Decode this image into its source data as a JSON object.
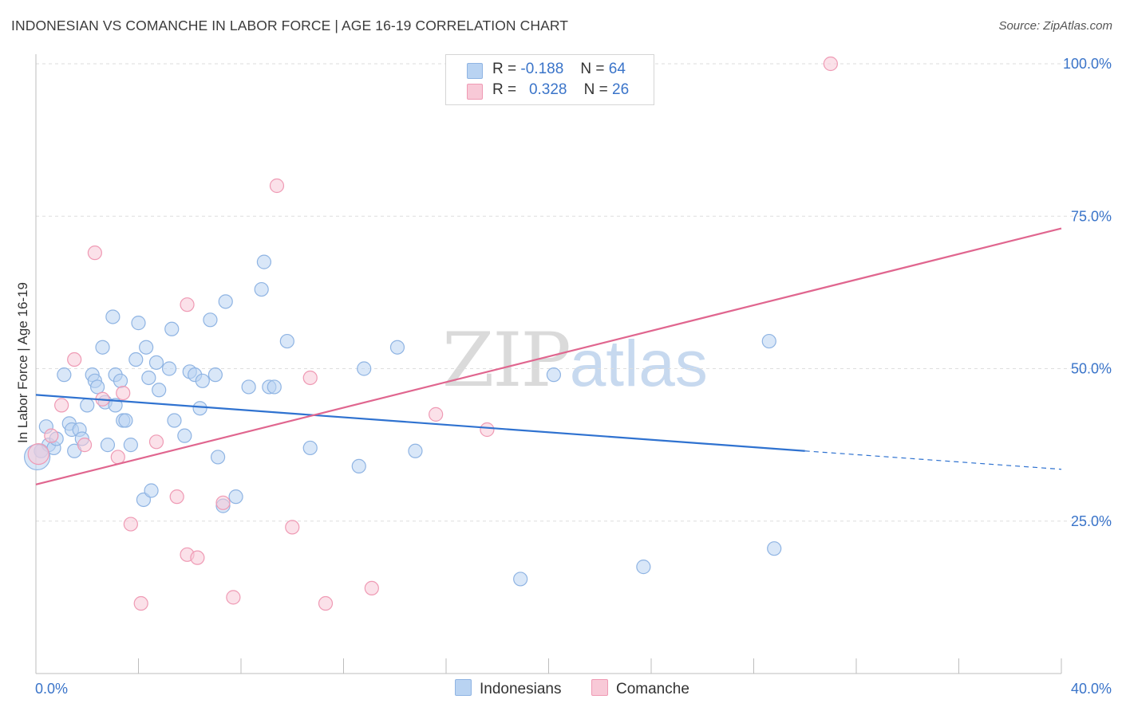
{
  "title": "INDONESIAN VS COMANCHE IN LABOR FORCE | AGE 16-19 CORRELATION CHART",
  "source": "Source: ZipAtlas.com",
  "watermark": {
    "zip": "ZIP",
    "atlas": "atlas"
  },
  "legend_top": {
    "r_label": "R =",
    "n_label": "N =",
    "rows": [
      {
        "r": "-0.188",
        "n": "64"
      },
      {
        "r": "0.328",
        "n": "26"
      }
    ]
  },
  "colors": {
    "blue_fill": "#b9d3f2",
    "blue_stroke": "#8fb4e3",
    "blue_line": "#2f72d0",
    "pink_fill": "#f8c9d7",
    "pink_stroke": "#ef9ab4",
    "pink_line": "#e0668f",
    "axis_label_color": "#3a74c9"
  },
  "chart_data": {
    "type": "scatter",
    "title": "INDONESIAN VS COMANCHE IN LABOR FORCE | AGE 16-19 CORRELATION CHART",
    "xlabel": "",
    "ylabel": "In Labor Force | Age 16-19",
    "xlim": [
      0,
      40
    ],
    "ylim": [
      0,
      100
    ],
    "x_tick_labels": [
      "0.0%",
      "40.0%"
    ],
    "y_tick_labels": [
      "25.0%",
      "50.0%",
      "75.0%",
      "100.0%"
    ],
    "y_ticks": [
      25,
      50,
      75,
      100
    ],
    "grid": true,
    "legend_position": "top-center",
    "series": [
      {
        "name": "Indonesians",
        "r": -0.188,
        "n": 64,
        "trend": {
          "x0": 0,
          "y0": 45.7,
          "x1": 30.0,
          "y1": 36.5,
          "dashed_to_x": 40,
          "dashed_to_y": 33.5
        },
        "points": [
          [
            0.2,
            36.5
          ],
          [
            0.4,
            40.5
          ],
          [
            0.5,
            37.5
          ],
          [
            0.7,
            37
          ],
          [
            0.8,
            38.5
          ],
          [
            1.1,
            49
          ],
          [
            1.3,
            41
          ],
          [
            1.4,
            40
          ],
          [
            1.5,
            36.5
          ],
          [
            1.7,
            40
          ],
          [
            1.8,
            38.5
          ],
          [
            2.0,
            44
          ],
          [
            2.2,
            49
          ],
          [
            2.3,
            48
          ],
          [
            2.4,
            47
          ],
          [
            2.6,
            53.5
          ],
          [
            2.7,
            44.5
          ],
          [
            2.8,
            37.5
          ],
          [
            3.0,
            58.5
          ],
          [
            3.1,
            49
          ],
          [
            3.1,
            44
          ],
          [
            3.3,
            48
          ],
          [
            3.4,
            41.5
          ],
          [
            3.5,
            41.5
          ],
          [
            3.7,
            37.5
          ],
          [
            3.9,
            51.5
          ],
          [
            4.0,
            57.5
          ],
          [
            4.2,
            28.5
          ],
          [
            4.3,
            53.5
          ],
          [
            4.4,
            48.5
          ],
          [
            4.5,
            30
          ],
          [
            4.7,
            51
          ],
          [
            4.8,
            46.5
          ],
          [
            5.2,
            50
          ],
          [
            5.3,
            56.5
          ],
          [
            5.4,
            41.5
          ],
          [
            5.8,
            39
          ],
          [
            6.0,
            49.5
          ],
          [
            6.2,
            49
          ],
          [
            6.4,
            43.5
          ],
          [
            6.5,
            48
          ],
          [
            6.8,
            58
          ],
          [
            7.0,
            49
          ],
          [
            7.1,
            35.5
          ],
          [
            7.3,
            27.5
          ],
          [
            7.4,
            61
          ],
          [
            7.8,
            29
          ],
          [
            8.3,
            47
          ],
          [
            8.8,
            63
          ],
          [
            8.9,
            67.5
          ],
          [
            9.1,
            47
          ],
          [
            9.3,
            47
          ],
          [
            9.8,
            54.5
          ],
          [
            10.7,
            37
          ],
          [
            12.6,
            34
          ],
          [
            12.8,
            50
          ],
          [
            14.1,
            53.5
          ],
          [
            14.8,
            36.5
          ],
          [
            18.9,
            15.5
          ],
          [
            20.2,
            49
          ],
          [
            23.7,
            17.5
          ],
          [
            28.6,
            54.5
          ],
          [
            28.8,
            20.5
          ],
          [
            0.05,
            35.5
          ]
        ]
      },
      {
        "name": "Comanche",
        "r": 0.328,
        "n": 26,
        "trend": {
          "x0": 0,
          "y0": 31.0,
          "x1": 40,
          "y1": 73.0
        },
        "points": [
          [
            0.1,
            36
          ],
          [
            0.6,
            39
          ],
          [
            1.0,
            44
          ],
          [
            1.5,
            51.5
          ],
          [
            1.9,
            37.5
          ],
          [
            2.3,
            69
          ],
          [
            2.6,
            45
          ],
          [
            3.2,
            35.5
          ],
          [
            3.4,
            46
          ],
          [
            3.7,
            24.5
          ],
          [
            4.1,
            11.5
          ],
          [
            4.7,
            38
          ],
          [
            5.5,
            29
          ],
          [
            5.9,
            60.5
          ],
          [
            5.9,
            19.5
          ],
          [
            6.3,
            19
          ],
          [
            7.3,
            28
          ],
          [
            7.7,
            12.5
          ],
          [
            9.4,
            80
          ],
          [
            10.0,
            24
          ],
          [
            10.7,
            48.5
          ],
          [
            11.3,
            11.5
          ],
          [
            13.1,
            14
          ],
          [
            15.6,
            42.5
          ],
          [
            17.6,
            40
          ],
          [
            31.0,
            100
          ]
        ]
      }
    ]
  },
  "legend_bottom": [
    {
      "label": "Indonesians"
    },
    {
      "label": "Comanche"
    }
  ]
}
